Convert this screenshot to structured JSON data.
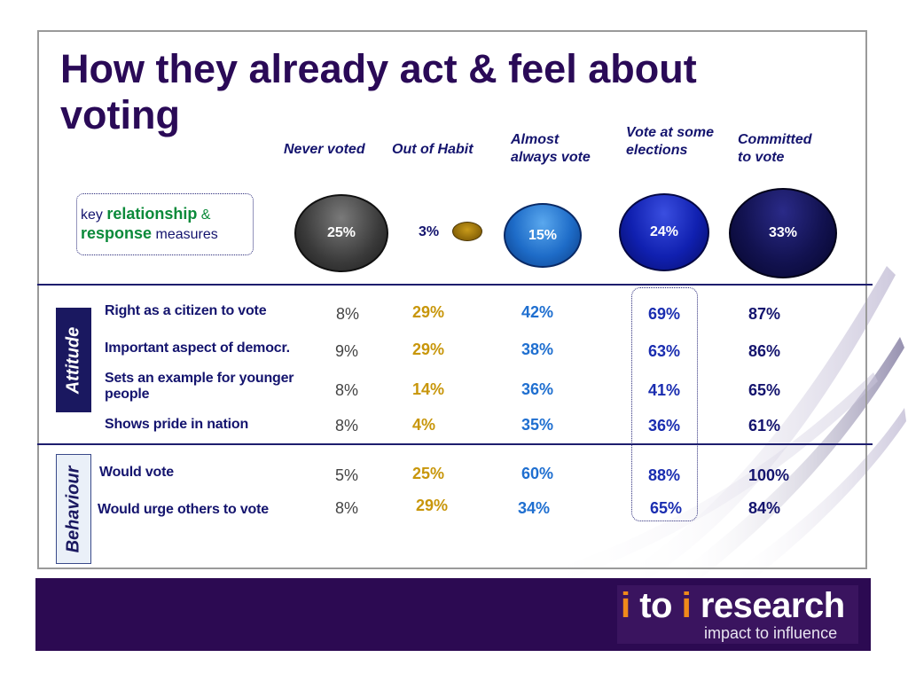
{
  "title": "How they already act & feel about voting",
  "columns": [
    {
      "line1": "Never voted",
      "line2": ""
    },
    {
      "line1": "Out of Habit",
      "line2": ""
    },
    {
      "line1": "Almost",
      "line2": "always vote"
    },
    {
      "line1": "Vote at some",
      "line2": "elections"
    },
    {
      "line1": "Committed",
      "line2": "to vote"
    }
  ],
  "key": {
    "prefix": "key ",
    "word1": "relationship",
    "amp": " &",
    "word2": "response",
    "suffix": " measures"
  },
  "segments": [
    "25%",
    "3%",
    "15%",
    "24%",
    "33%"
  ],
  "sections": {
    "attitude": "Attitude",
    "behaviour": "Behaviour"
  },
  "rows": [
    {
      "label": "Right as a citizen to vote",
      "label2": "",
      "values": [
        "8%",
        "29%",
        "42%",
        "69%",
        "87%"
      ]
    },
    {
      "label": "Important aspect of democr.",
      "label2": "",
      "values": [
        "9%",
        "29%",
        "38%",
        "63%",
        "86%"
      ]
    },
    {
      "label": "Sets  an example for younger",
      "label2": "people",
      "values": [
        "8%",
        "14%",
        "36%",
        "41%",
        "65%"
      ]
    },
    {
      "label": "Shows pride in nation",
      "label2": "",
      "values": [
        "8%",
        "4%",
        "35%",
        "36%",
        "61%"
      ]
    },
    {
      "label": "Would vote",
      "label2": "",
      "values": [
        "5%",
        "25%",
        "60%",
        "88%",
        "100%"
      ]
    },
    {
      "label": "Would urge others to vote",
      "label2": "",
      "values": [
        "8%",
        "29%",
        "34%",
        "65%",
        "84%"
      ]
    }
  ],
  "footer": {
    "brand_i1": "i",
    "brand_to": " to ",
    "brand_i2": "i",
    "brand_research": " research",
    "tagline": "impact to influence"
  }
}
